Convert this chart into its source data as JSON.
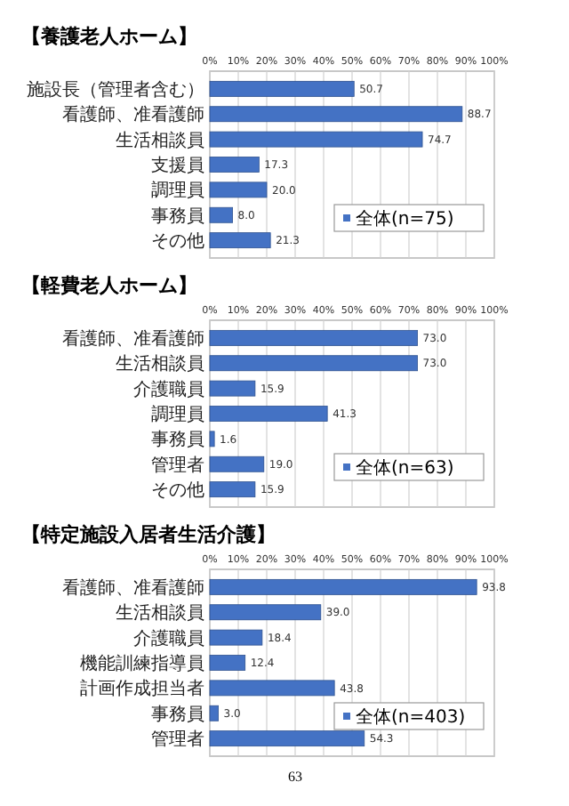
{
  "chart_data": [
    {
      "type": "bar",
      "orientation": "horizontal",
      "title": "【養護老人ホーム】",
      "categories": [
        "施設長（管理者含む）",
        "看護師、准看護師",
        "生活相談員",
        "支援員",
        "調理員",
        "事務員",
        "その他"
      ],
      "series": [
        {
          "name": "全体(n=75)",
          "color": "#4472c4",
          "values": [
            50.7,
            88.7,
            74.7,
            17.3,
            20.0,
            8.0,
            21.3
          ],
          "value_labels": [
            "50.7",
            "88.7",
            "74.7",
            "17.3",
            "20.0",
            "8.0",
            "21.3"
          ]
        }
      ],
      "xlim": [
        0,
        100
      ],
      "xticks": [
        {
          "value": 0,
          "label": "0%"
        },
        {
          "value": 10,
          "label": "10%"
        },
        {
          "value": 20,
          "label": "20%"
        },
        {
          "value": 30,
          "label": "30%"
        },
        {
          "value": 40,
          "label": "40%"
        },
        {
          "value": 50,
          "label": "50%"
        },
        {
          "value": 60,
          "label": "60%"
        },
        {
          "value": 70,
          "label": "70%"
        },
        {
          "value": 80,
          "label": "80%"
        },
        {
          "value": 90,
          "label": "90%"
        },
        {
          "value": 100,
          "label": "100%"
        }
      ],
      "grid": "x",
      "legend": "bottom right"
    },
    {
      "type": "bar",
      "orientation": "horizontal",
      "title": "【軽費老人ホーム】",
      "categories": [
        "看護師、准看護師",
        "生活相談員",
        "介護職員",
        "調理員",
        "事務員",
        "管理者",
        "その他"
      ],
      "series": [
        {
          "name": "全体(n=63)",
          "color": "#4472c4",
          "values": [
            73.0,
            73.0,
            15.9,
            41.3,
            1.6,
            19.0,
            15.9
          ],
          "value_labels": [
            "73.0",
            "73.0",
            "15.9",
            "41.3",
            "1.6",
            "19.0",
            "15.9"
          ]
        }
      ],
      "xlim": [
        0,
        100
      ],
      "xticks": [
        {
          "value": 0,
          "label": "0%"
        },
        {
          "value": 10,
          "label": "10%"
        },
        {
          "value": 20,
          "label": "20%"
        },
        {
          "value": 30,
          "label": "30%"
        },
        {
          "value": 40,
          "label": "40%"
        },
        {
          "value": 50,
          "label": "50%"
        },
        {
          "value": 60,
          "label": "60%"
        },
        {
          "value": 70,
          "label": "70%"
        },
        {
          "value": 80,
          "label": "80%"
        },
        {
          "value": 90,
          "label": "90%"
        },
        {
          "value": 100,
          "label": "100%"
        }
      ],
      "grid": "x",
      "legend": "bottom right"
    },
    {
      "type": "bar",
      "orientation": "horizontal",
      "title": "【特定施設入居者生活介護】",
      "categories": [
        "看護師、准看護師",
        "生活相談員",
        "介護職員",
        "機能訓練指導員",
        "計画作成担当者",
        "事務員",
        "管理者"
      ],
      "series": [
        {
          "name": "全体(n=403)",
          "color": "#4472c4",
          "values": [
            93.8,
            39.0,
            18.4,
            12.4,
            43.8,
            3.0,
            54.3
          ],
          "value_labels": [
            "93.8",
            "39.0",
            "18.4",
            "12.4",
            "43.8",
            "3.0",
            "54.3"
          ]
        }
      ],
      "xlim": [
        0,
        100
      ],
      "xticks": [
        {
          "value": 0,
          "label": "0%"
        },
        {
          "value": 10,
          "label": "10%"
        },
        {
          "value": 20,
          "label": "20%"
        },
        {
          "value": 30,
          "label": "30%"
        },
        {
          "value": 40,
          "label": "40%"
        },
        {
          "value": 50,
          "label": "50%"
        },
        {
          "value": 60,
          "label": "60%"
        },
        {
          "value": 70,
          "label": "70%"
        },
        {
          "value": 80,
          "label": "80%"
        },
        {
          "value": 90,
          "label": "90%"
        },
        {
          "value": 100,
          "label": "100%"
        }
      ],
      "grid": "x",
      "legend": "bottom right",
      "annotations": [
        "63"
      ]
    }
  ]
}
